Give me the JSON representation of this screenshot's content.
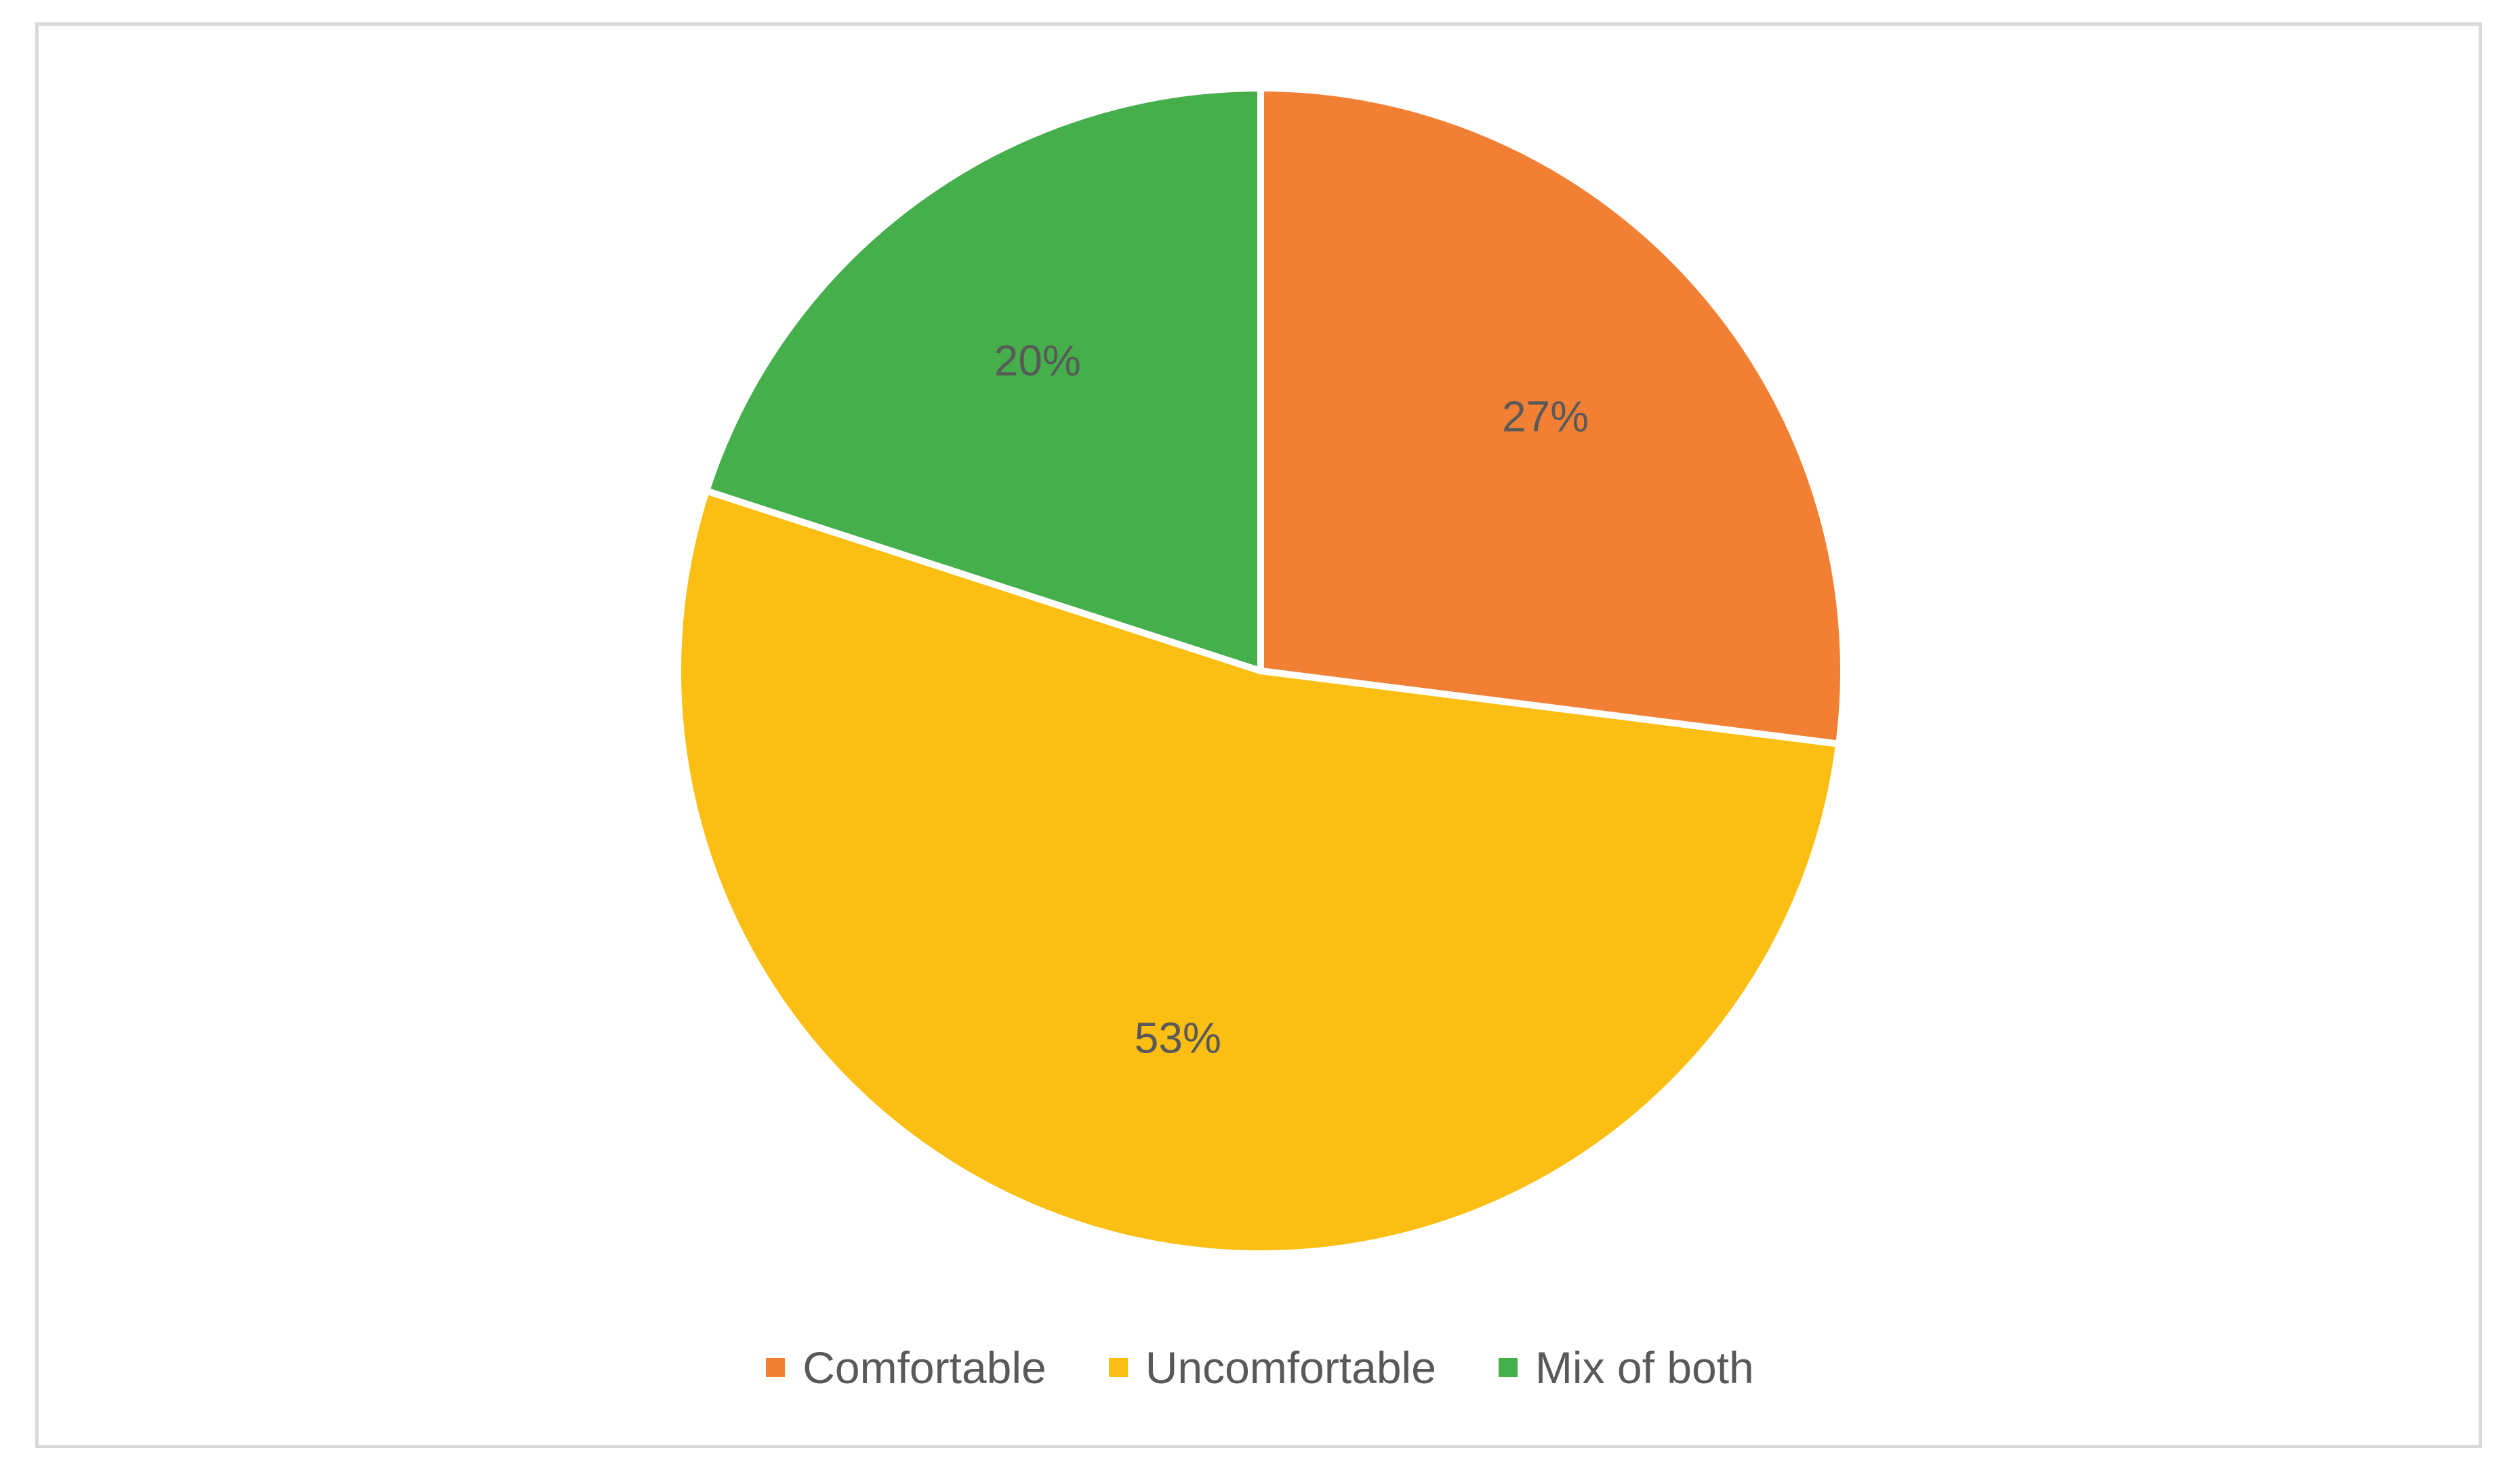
{
  "chart_data": {
    "type": "pie",
    "title": "",
    "categories": [
      "Comfortable",
      "Uncomfortable",
      "Mix of both"
    ],
    "values": [
      27,
      53,
      20
    ],
    "labels": [
      "27%",
      "53%",
      "20%"
    ],
    "colors": [
      "#F28034",
      "#FBBE12",
      "#45AF4B"
    ],
    "start_angle_deg": 0,
    "direction": "clockwise",
    "legend_position": "bottom"
  }
}
